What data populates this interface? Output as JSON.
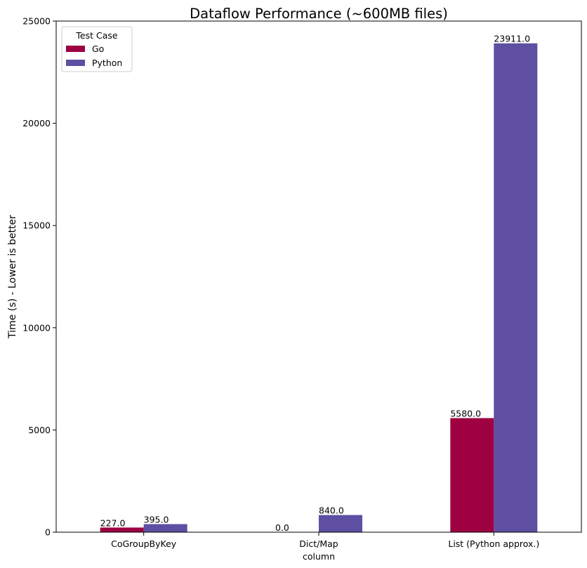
{
  "chart_data": {
    "type": "bar",
    "title": "Dataflow Performance (~600MB files)",
    "xlabel": "column",
    "ylabel": "Time (s) - Lower is better",
    "categories": [
      "CoGroupByKey",
      "Dict/Map",
      "List (Python approx.)"
    ],
    "series": [
      {
        "name": "Go",
        "values": [
          227.0,
          0.0,
          5580.0
        ],
        "color": "#9e0142"
      },
      {
        "name": "Python",
        "values": [
          395.0,
          840.0,
          23911.0
        ],
        "color": "#5e4fa2"
      }
    ],
    "data_labels": [
      [
        "227.0",
        "0.0",
        "5580.0"
      ],
      [
        "395.0",
        "840.0",
        "23911.0"
      ]
    ],
    "ylim": [
      0,
      25000
    ],
    "yticks": [
      0,
      5000,
      10000,
      15000,
      20000,
      25000
    ],
    "grid": false,
    "legend": {
      "title": "Test Case",
      "position": "upper-left"
    }
  }
}
